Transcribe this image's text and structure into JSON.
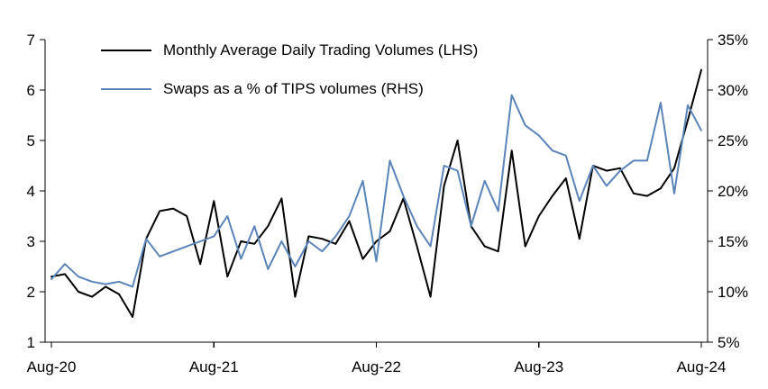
{
  "chart_data": {
    "type": "line",
    "title": "",
    "grid": false,
    "legend_position": "top-left",
    "x_tick_labels": [
      "Aug-20",
      "Aug-21",
      "Aug-22",
      "Aug-23",
      "Aug-24"
    ],
    "x_tick_positions": [
      0,
      12,
      24,
      36,
      48
    ],
    "categories": [
      "Aug-20",
      "Sep-20",
      "Oct-20",
      "Nov-20",
      "Dec-20",
      "Jan-21",
      "Feb-21",
      "Mar-21",
      "Apr-21",
      "May-21",
      "Jun-21",
      "Jul-21",
      "Aug-21",
      "Sep-21",
      "Oct-21",
      "Nov-21",
      "Dec-21",
      "Jan-22",
      "Feb-22",
      "Mar-22",
      "Apr-22",
      "May-22",
      "Jun-22",
      "Jul-22",
      "Aug-22",
      "Sep-22",
      "Oct-22",
      "Nov-22",
      "Dec-22",
      "Jan-23",
      "Feb-23",
      "Mar-23",
      "Apr-23",
      "May-23",
      "Jun-23",
      "Jul-23",
      "Aug-23",
      "Sep-23",
      "Oct-23",
      "Nov-23",
      "Dec-23",
      "Jan-24",
      "Feb-24",
      "Mar-24",
      "Apr-24",
      "May-24",
      "Jun-24",
      "Jul-24",
      "Aug-24"
    ],
    "left_axis": {
      "min": 1,
      "max": 7,
      "ticks": [
        1,
        2,
        3,
        4,
        5,
        6,
        7
      ]
    },
    "right_axis": {
      "min": 5,
      "max": 35,
      "tick_values": [
        5,
        10,
        15,
        20,
        25,
        30,
        35
      ],
      "tick_labels": [
        "5%",
        "10%",
        "15%",
        "20%",
        "25%",
        "30%",
        "35%"
      ]
    },
    "series": [
      {
        "name": "Monthly Average Daily Trading Volumes (LHS)",
        "axis": "left",
        "color": "#000000",
        "values": [
          2.3,
          2.35,
          2.0,
          1.9,
          2.1,
          1.95,
          1.5,
          3.05,
          3.6,
          3.65,
          3.5,
          2.55,
          3.8,
          2.3,
          3.0,
          2.95,
          3.3,
          3.85,
          1.9,
          3.1,
          3.05,
          2.95,
          3.4,
          2.65,
          3.0,
          3.2,
          3.85,
          2.9,
          1.9,
          4.1,
          5.0,
          3.3,
          2.9,
          2.8,
          4.8,
          2.9,
          3.5,
          3.9,
          4.25,
          3.05,
          4.5,
          4.4,
          4.45,
          3.95,
          3.9,
          4.05,
          4.45,
          5.4,
          6.4
        ]
      },
      {
        "name": "Swaps as a % of TIPS volumes (RHS)",
        "axis": "right",
        "color": "#5b84b8",
        "values": [
          11.25,
          12.75,
          11.5,
          11.0,
          10.75,
          11.0,
          10.5,
          15.25,
          13.5,
          14.0,
          14.5,
          15.0,
          15.5,
          17.5,
          13.25,
          16.5,
          12.25,
          15.0,
          12.5,
          15.0,
          14.0,
          15.5,
          17.5,
          21.0,
          13.0,
          23.0,
          19.5,
          16.5,
          14.5,
          22.5,
          22.0,
          16.5,
          21.0,
          18.0,
          29.5,
          26.5,
          25.5,
          24.0,
          23.5,
          19.0,
          22.5,
          20.5,
          22.0,
          23.0,
          23.0,
          28.75,
          19.75,
          28.5,
          26.0
        ]
      }
    ]
  }
}
